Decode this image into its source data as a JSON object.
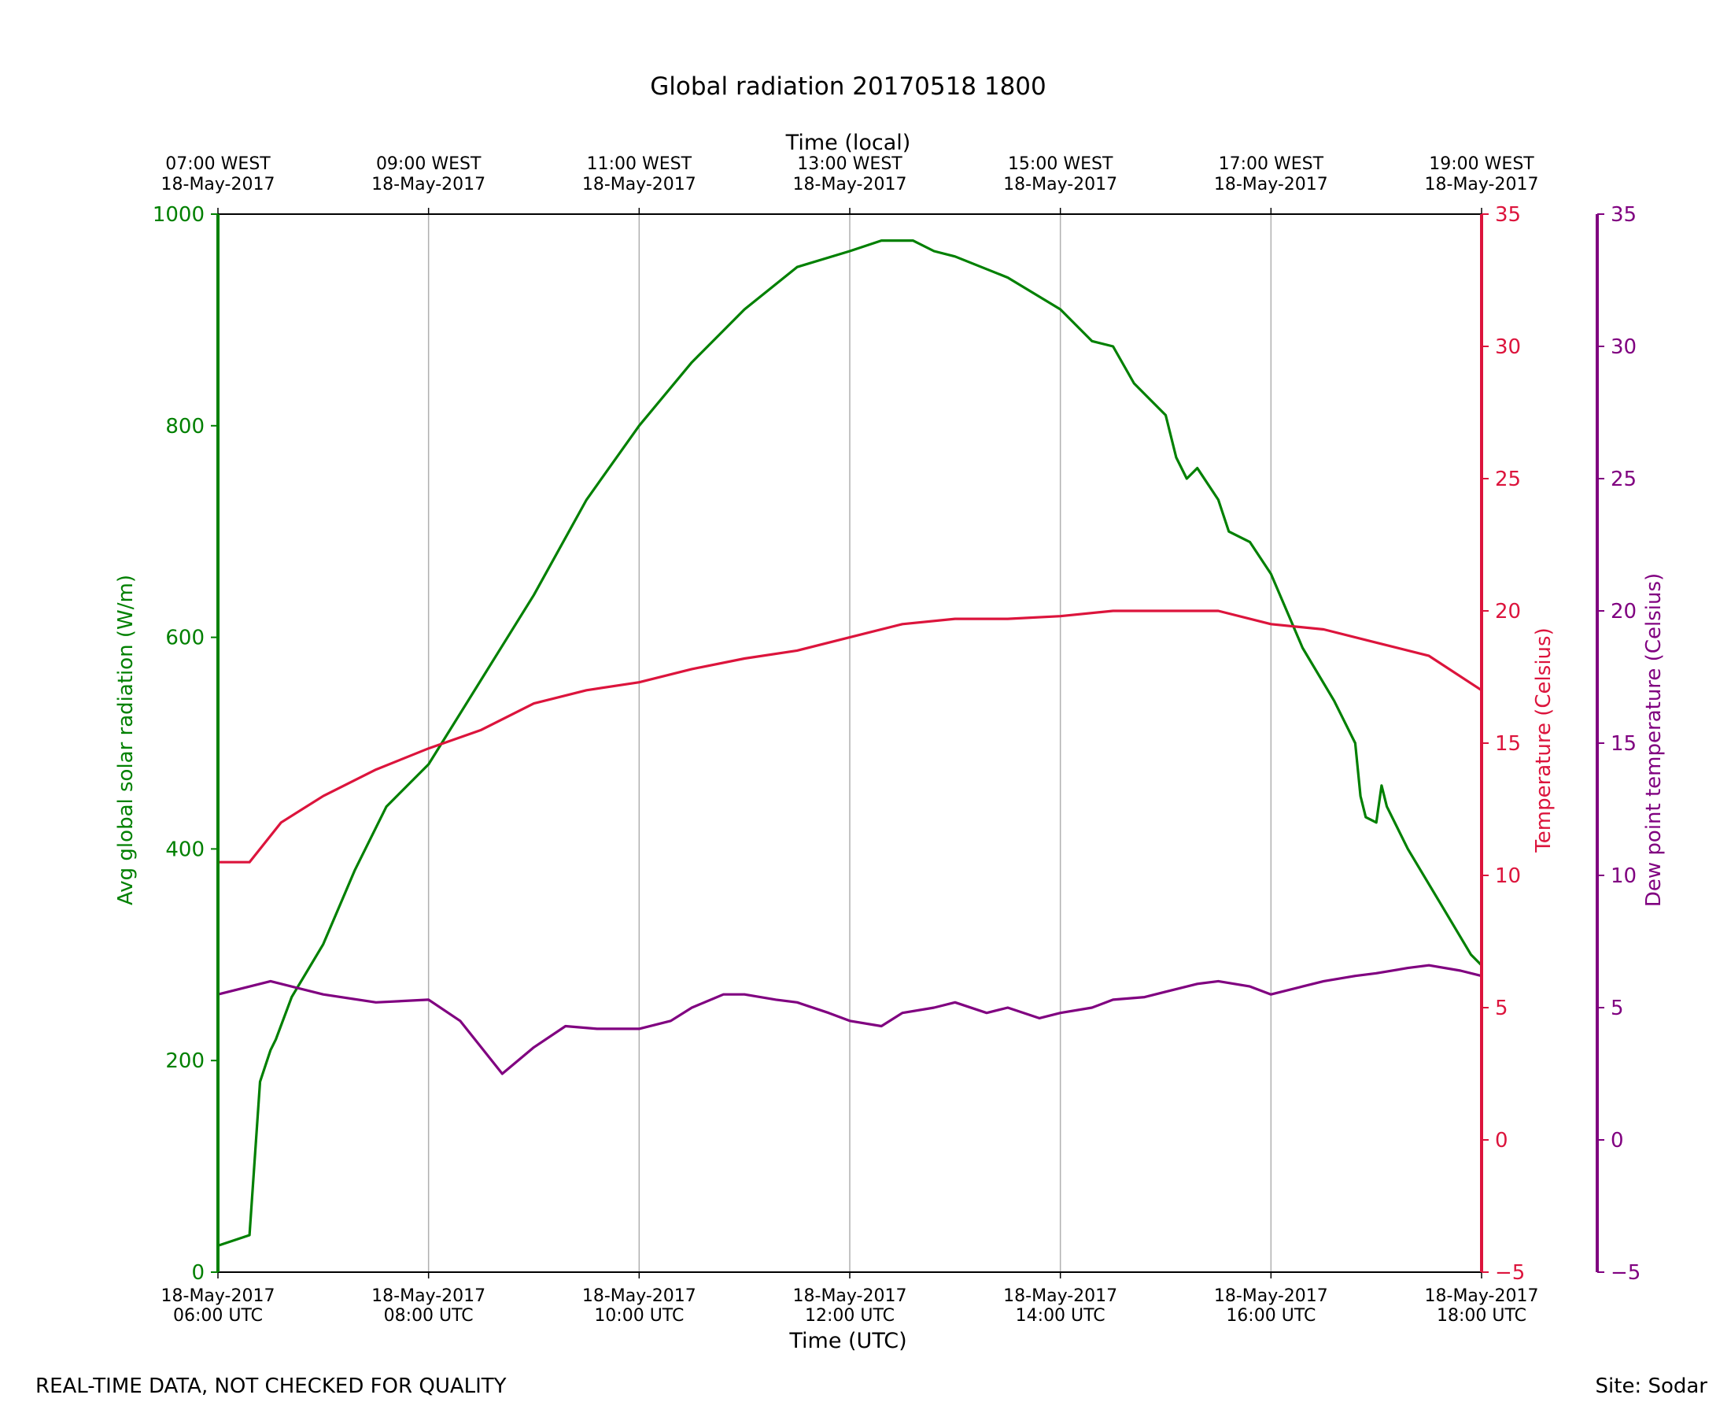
{
  "colors": {
    "radiation": "#008000",
    "temperature": "#dc143c",
    "dewpoint": "#800080",
    "grid": "#b0b0b0",
    "axis": "#000000"
  },
  "footer": {
    "left": "REAL-TIME DATA, NOT CHECKED FOR QUALITY",
    "right": "Site: Sodar"
  },
  "chart_data": {
    "type": "line",
    "title": "Global radiation 20170518 1800",
    "xlabel": "Time (UTC)",
    "xlabel_top": "Time (local)",
    "x_range_hours": [
      6,
      18
    ],
    "x_ticks": [
      {
        "hour": 6,
        "line1": "18-May-2017",
        "line2": "06:00 UTC"
      },
      {
        "hour": 8,
        "line1": "18-May-2017",
        "line2": "08:00 UTC"
      },
      {
        "hour": 10,
        "line1": "18-May-2017",
        "line2": "10:00 UTC"
      },
      {
        "hour": 12,
        "line1": "18-May-2017",
        "line2": "12:00 UTC"
      },
      {
        "hour": 14,
        "line1": "18-May-2017",
        "line2": "14:00 UTC"
      },
      {
        "hour": 16,
        "line1": "18-May-2017",
        "line2": "16:00 UTC"
      },
      {
        "hour": 18,
        "line1": "18-May-2017",
        "line2": "18:00 UTC"
      }
    ],
    "x_ticks_top": [
      {
        "hour": 6,
        "line1": "07:00 WEST",
        "line2": "18-May-2017"
      },
      {
        "hour": 8,
        "line1": "09:00 WEST",
        "line2": "18-May-2017"
      },
      {
        "hour": 10,
        "line1": "11:00 WEST",
        "line2": "18-May-2017"
      },
      {
        "hour": 12,
        "line1": "13:00 WEST",
        "line2": "18-May-2017"
      },
      {
        "hour": 14,
        "line1": "15:00 WEST",
        "line2": "18-May-2017"
      },
      {
        "hour": 16,
        "line1": "17:00 WEST",
        "line2": "18-May-2017"
      },
      {
        "hour": 18,
        "line1": "19:00 WEST",
        "line2": "18-May-2017"
      }
    ],
    "y_axes": [
      {
        "key": "radiation",
        "label": "Avg global solar radiation (W/m)",
        "range": [
          0,
          1000
        ],
        "ticks": [
          0,
          200,
          400,
          600,
          800,
          1000
        ]
      },
      {
        "key": "temperature",
        "label": "Temperature (Celsius)",
        "range": [
          -5,
          35
        ],
        "ticks": [
          -5,
          0,
          5,
          10,
          15,
          20,
          25,
          30,
          35
        ],
        "tick_labels": [
          "−5",
          "0",
          "5",
          "10",
          "15",
          "20",
          "25",
          "30",
          "35"
        ]
      },
      {
        "key": "dewpoint",
        "label": "Dew point temperature (Celsius)",
        "range": [
          -5,
          35
        ],
        "ticks": [
          -5,
          0,
          5,
          10,
          15,
          20,
          25,
          30,
          35
        ],
        "tick_labels": [
          "−5",
          "0",
          "5",
          "10",
          "15",
          "20",
          "25",
          "30",
          "35"
        ]
      }
    ],
    "series": [
      {
        "name": "Avg global solar radiation",
        "axis": "radiation",
        "x_hours": [
          6.0,
          6.3,
          6.4,
          6.5,
          6.55,
          6.7,
          7.0,
          7.3,
          7.6,
          8.0,
          8.5,
          9.0,
          9.5,
          10.0,
          10.5,
          11.0,
          11.5,
          12.0,
          12.3,
          12.6,
          12.8,
          13.0,
          13.5,
          14.0,
          14.3,
          14.5,
          14.7,
          15.0,
          15.1,
          15.2,
          15.3,
          15.5,
          15.6,
          15.8,
          16.0,
          16.3,
          16.6,
          16.8,
          16.85,
          16.9,
          17.0,
          17.05,
          17.1,
          17.3,
          17.6,
          17.9,
          18.0
        ],
        "values": [
          25,
          35,
          180,
          210,
          220,
          260,
          310,
          380,
          440,
          480,
          560,
          640,
          730,
          800,
          860,
          910,
          950,
          965,
          975,
          975,
          965,
          960,
          940,
          910,
          880,
          875,
          840,
          810,
          770,
          750,
          760,
          730,
          700,
          690,
          660,
          590,
          540,
          500,
          450,
          430,
          425,
          460,
          440,
          400,
          350,
          300,
          290
        ]
      },
      {
        "name": "Temperature",
        "axis": "temperature",
        "x_hours": [
          6.0,
          6.3,
          6.6,
          7.0,
          7.5,
          8.0,
          8.5,
          9.0,
          9.5,
          10.0,
          10.5,
          11.0,
          11.5,
          12.0,
          12.5,
          13.0,
          13.5,
          14.0,
          14.5,
          15.0,
          15.5,
          16.0,
          16.5,
          17.0,
          17.5,
          18.0
        ],
        "values": [
          10.5,
          10.5,
          12.0,
          13.0,
          14.0,
          14.8,
          15.5,
          16.5,
          17.0,
          17.3,
          17.8,
          18.2,
          18.5,
          19.0,
          19.5,
          19.7,
          19.7,
          19.8,
          20.0,
          20.0,
          20.0,
          19.5,
          19.3,
          18.8,
          18.3,
          17.0
        ]
      },
      {
        "name": "Dew point temperature",
        "axis": "dewpoint",
        "x_hours": [
          6.0,
          6.5,
          7.0,
          7.5,
          8.0,
          8.3,
          8.5,
          8.7,
          9.0,
          9.3,
          9.6,
          10.0,
          10.3,
          10.5,
          10.8,
          11.0,
          11.3,
          11.5,
          11.8,
          12.0,
          12.3,
          12.5,
          12.8,
          13.0,
          13.3,
          13.5,
          13.8,
          14.0,
          14.3,
          14.5,
          14.8,
          15.0,
          15.3,
          15.5,
          15.8,
          16.0,
          16.3,
          16.5,
          16.8,
          17.0,
          17.3,
          17.5,
          17.8,
          18.0
        ],
        "values": [
          5.5,
          6.0,
          5.5,
          5.2,
          5.3,
          4.5,
          3.5,
          2.5,
          3.5,
          4.3,
          4.2,
          4.2,
          4.5,
          5.0,
          5.5,
          5.5,
          5.3,
          5.2,
          4.8,
          4.5,
          4.3,
          4.8,
          5.0,
          5.2,
          4.8,
          5.0,
          4.6,
          4.8,
          5.0,
          5.3,
          5.4,
          5.6,
          5.9,
          6.0,
          5.8,
          5.5,
          5.8,
          6.0,
          6.2,
          6.3,
          6.5,
          6.6,
          6.4,
          6.2
        ]
      }
    ]
  }
}
